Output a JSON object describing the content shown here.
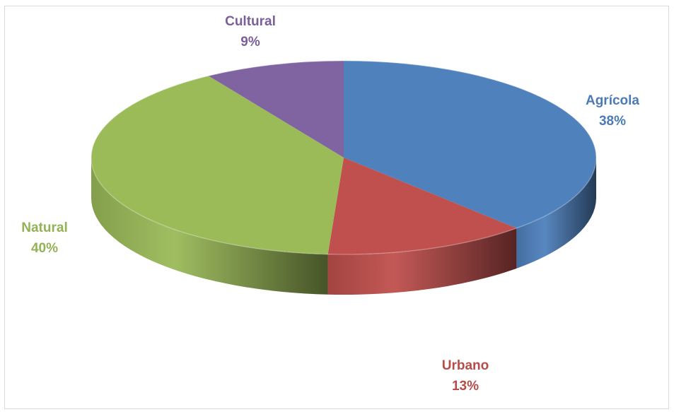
{
  "chart_data": {
    "type": "pie",
    "three_d": true,
    "categories": [
      "Agrícola",
      "Urbano",
      "Natural",
      "Cultural"
    ],
    "values": [
      38,
      13,
      40,
      9
    ],
    "labels": [
      {
        "name": "Agrícola",
        "percent": "38%"
      },
      {
        "name": "Urbano",
        "percent": "13%"
      },
      {
        "name": "Natural",
        "percent": "40%"
      },
      {
        "name": "Cultural",
        "percent": "9%"
      }
    ],
    "colors": [
      "#4f81bd",
      "#c0504d",
      "#9bbb59",
      "#8064a2"
    ],
    "legend": "none"
  }
}
